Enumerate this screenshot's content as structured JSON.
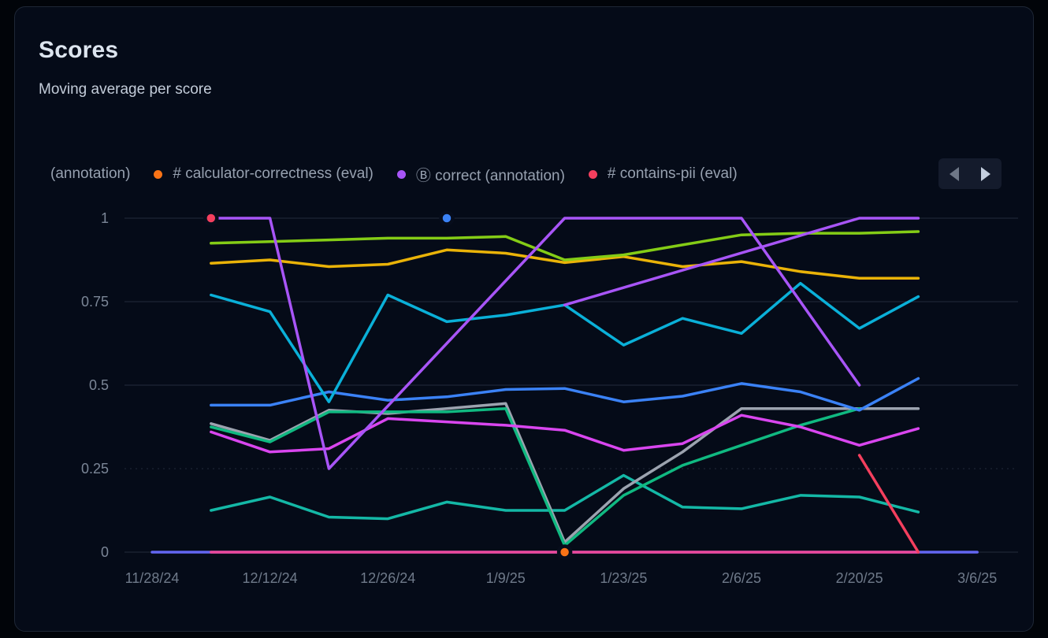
{
  "card": {
    "title": "Scores",
    "subtitle": "Moving average per score"
  },
  "legend": {
    "items": [
      {
        "label": "(annotation)",
        "color": null
      },
      {
        "label": "# calculator-correctness (eval)",
        "color": "#f97316"
      },
      {
        "label": "Ⓑ correct (annotation)",
        "color": "#a855f7"
      },
      {
        "label": "# contains-pii (eval)",
        "color": "#f43f5e"
      }
    ]
  },
  "chart_data": {
    "type": "line",
    "title": "Scores",
    "subtitle": "Moving average per score",
    "ylim": [
      0,
      1
    ],
    "ytick_labels": [
      "0",
      "0.25",
      "0.5",
      "0.75",
      "1"
    ],
    "yticks": [
      0,
      0.25,
      0.5,
      0.75,
      1
    ],
    "dotted_gridline_at": 0.25,
    "xtick_labels": [
      "11/28/24",
      "12/12/24",
      "12/26/24",
      "1/9/25",
      "1/23/25",
      "2/6/25",
      "2/20/25",
      "3/6/25"
    ],
    "x_weeks": [
      "11/28/24",
      "12/5/24",
      "12/12/24",
      "12/19/24",
      "12/26/24",
      "1/2/25",
      "1/9/25",
      "1/16/25",
      "1/23/25",
      "1/30/25",
      "2/6/25",
      "2/13/25",
      "2/20/25",
      "2/27/25",
      "3/6/25"
    ],
    "legend_position": "top",
    "grid": "horizontal-only",
    "series": [
      {
        "id": "indigo-flat",
        "color": "#6366f1",
        "points": [
          [
            0,
            0
          ],
          [
            14,
            0
          ]
        ]
      },
      {
        "id": "pink-flat",
        "color": "#ec4899",
        "points": [
          [
            1,
            0
          ],
          [
            2,
            0
          ],
          [
            3,
            0
          ],
          [
            4,
            0
          ],
          [
            5,
            0
          ],
          [
            6,
            0
          ],
          [
            7,
            0
          ],
          [
            8,
            0
          ],
          [
            9,
            0
          ],
          [
            10,
            0
          ],
          [
            11,
            0
          ],
          [
            12,
            0
          ],
          [
            13,
            0
          ]
        ]
      },
      {
        "id": "teal-low",
        "color": "#14b8a6",
        "points": [
          [
            1,
            0.125
          ],
          [
            2,
            0.165
          ],
          [
            3,
            0.105
          ],
          [
            4,
            0.1
          ],
          [
            5,
            0.15
          ],
          [
            6,
            0.125
          ],
          [
            7,
            0.125
          ],
          [
            8,
            0.23
          ],
          [
            9,
            0.135
          ],
          [
            10,
            0.13
          ],
          [
            11,
            0.17
          ],
          [
            12,
            0.165
          ],
          [
            13,
            0.12
          ]
        ]
      },
      {
        "id": "gray",
        "color": "#9ca3af",
        "points": [
          [
            1,
            0.385
          ],
          [
            2,
            0.335
          ],
          [
            3,
            0.425
          ],
          [
            4,
            0.415
          ],
          [
            5,
            0.43
          ],
          [
            6,
            0.445
          ],
          [
            7,
            0.03
          ],
          [
            8,
            0.19
          ],
          [
            9,
            0.3
          ],
          [
            10,
            0.43
          ],
          [
            11,
            0.43
          ],
          [
            12,
            0.43
          ],
          [
            13,
            0.43
          ]
        ]
      },
      {
        "id": "emerald",
        "color": "#10b981",
        "points": [
          [
            1,
            0.375
          ],
          [
            2,
            0.33
          ],
          [
            3,
            0.42
          ],
          [
            4,
            0.42
          ],
          [
            5,
            0.42
          ],
          [
            6,
            0.43
          ],
          [
            7,
            0.02
          ],
          [
            8,
            0.17
          ],
          [
            9,
            0.26
          ],
          [
            10,
            0.32
          ],
          [
            11,
            0.38
          ],
          [
            12,
            0.43
          ]
        ]
      },
      {
        "id": "magenta",
        "color": "#d946ef",
        "points": [
          [
            1,
            0.36
          ],
          [
            2,
            0.3
          ],
          [
            3,
            0.31
          ],
          [
            4,
            0.4
          ],
          [
            5,
            0.39
          ],
          [
            6,
            0.38
          ],
          [
            7,
            0.365
          ],
          [
            8,
            0.305
          ],
          [
            9,
            0.325
          ],
          [
            10,
            0.41
          ],
          [
            11,
            0.375
          ],
          [
            12,
            0.32
          ],
          [
            13,
            0.37
          ]
        ]
      },
      {
        "id": "blue",
        "color": "#3b82f6",
        "points": [
          [
            1,
            0.44
          ],
          [
            2,
            0.44
          ],
          [
            3,
            0.48
          ],
          [
            4,
            0.455
          ],
          [
            5,
            0.465
          ],
          [
            6,
            0.487
          ],
          [
            7,
            0.49
          ],
          [
            8,
            0.45
          ],
          [
            9,
            0.467
          ],
          [
            10,
            0.505
          ],
          [
            11,
            0.48
          ],
          [
            12,
            0.425
          ],
          [
            13,
            0.52
          ]
        ]
      },
      {
        "id": "cyan",
        "color": "#0ab0d8",
        "points": [
          [
            1,
            0.77
          ],
          [
            2,
            0.72
          ],
          [
            3,
            0.45
          ],
          [
            4,
            0.77
          ],
          [
            5,
            0.69
          ],
          [
            6,
            0.71
          ],
          [
            7,
            0.74
          ],
          [
            8,
            0.62
          ],
          [
            9,
            0.7
          ],
          [
            10,
            0.655
          ],
          [
            11,
            0.805
          ],
          [
            12,
            0.67
          ],
          [
            13,
            0.765
          ]
        ]
      },
      {
        "id": "amber",
        "color": "#eab308",
        "points": [
          [
            1,
            0.865
          ],
          [
            2,
            0.875
          ],
          [
            3,
            0.855
          ],
          [
            4,
            0.862
          ],
          [
            5,
            0.905
          ],
          [
            6,
            0.895
          ],
          [
            7,
            0.867
          ],
          [
            8,
            0.885
          ],
          [
            9,
            0.855
          ],
          [
            10,
            0.87
          ],
          [
            11,
            0.84
          ],
          [
            12,
            0.82
          ],
          [
            13,
            0.82
          ]
        ]
      },
      {
        "id": "lime",
        "color": "#84cc16",
        "points": [
          [
            1,
            0.925
          ],
          [
            2,
            0.93
          ],
          [
            3,
            0.935
          ],
          [
            4,
            0.94
          ],
          [
            5,
            0.94
          ],
          [
            6,
            0.945
          ],
          [
            7,
            0.875
          ],
          [
            8,
            0.89
          ],
          [
            9,
            0.92
          ],
          [
            10,
            0.95
          ],
          [
            11,
            0.955
          ],
          [
            12,
            0.955
          ],
          [
            13,
            0.96
          ]
        ]
      },
      {
        "id": "violet-1",
        "color": "#a855f7",
        "points": [
          [
            1,
            1
          ],
          [
            2,
            1
          ],
          [
            3,
            0.25
          ],
          [
            7,
            1
          ],
          [
            10,
            1
          ],
          [
            12,
            0.5
          ]
        ]
      },
      {
        "id": "violet-2",
        "color": "#a855f7",
        "points": [
          [
            7,
            0.74
          ],
          [
            12,
            1
          ],
          [
            13,
            1
          ]
        ]
      },
      {
        "id": "red",
        "color": "#f43f5e",
        "points": [
          [
            12,
            0.29
          ],
          [
            13,
            0
          ]
        ]
      }
    ],
    "markers": [
      {
        "week": 1,
        "value": 1,
        "color": "#f43f5e",
        "name": "contains-pii-point"
      },
      {
        "week": 5,
        "value": 1,
        "color": "#3b82f6",
        "name": "blue-point"
      },
      {
        "week": 7,
        "value": 0,
        "color": "#f97316",
        "name": "calculator-correctness-point"
      }
    ]
  }
}
